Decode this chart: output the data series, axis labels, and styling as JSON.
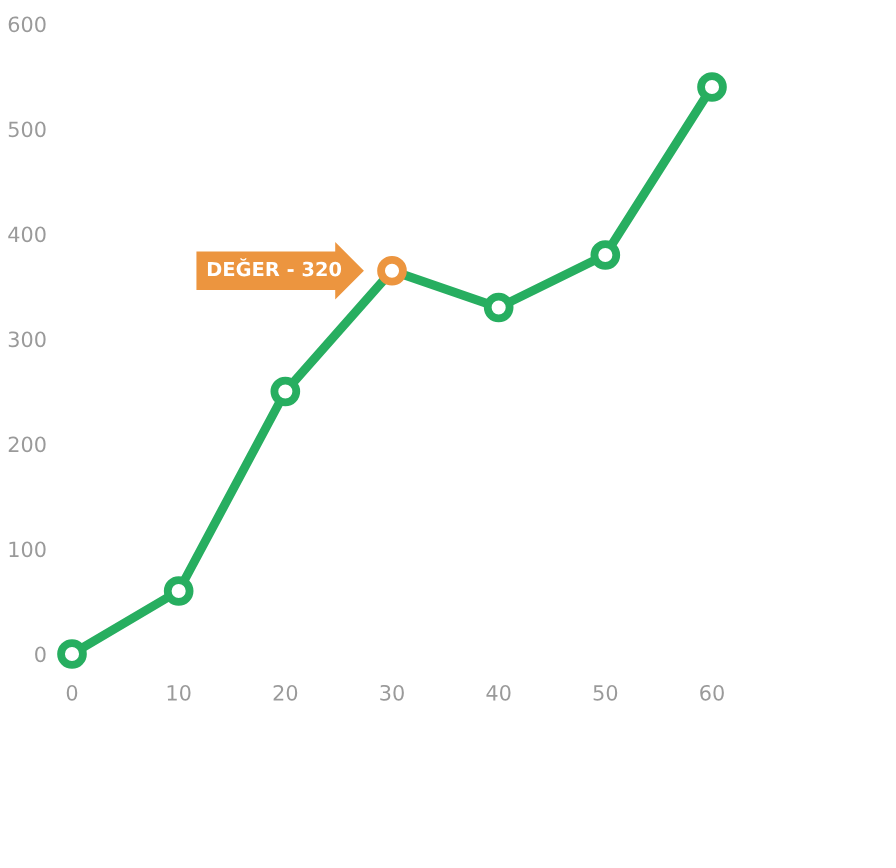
{
  "chart_data": {
    "type": "line",
    "x": [
      0,
      10,
      20,
      30,
      40,
      50,
      60
    ],
    "series": [
      {
        "color": "#27ae60",
        "colors": [
          "#27ae60",
          "#27ae60",
          "#27ae60",
          "#ec953f",
          "#27ae60",
          "#27ae60",
          "#27ae60"
        ],
        "values": [
          0,
          60,
          250,
          365,
          330,
          380,
          540
        ]
      }
    ],
    "xlim": [
      0,
      60
    ],
    "xticks": [
      0,
      10,
      20,
      30,
      40,
      50,
      60
    ],
    "ylim": [
      0,
      600
    ],
    "yticks": [
      0,
      100,
      200,
      300,
      400,
      500,
      600
    ],
    "grid": false,
    "legend": false,
    "marker": "circle",
    "line_style": "solid",
    "annotations": [
      {
        "text": "DEĞER - 320",
        "x": 30,
        "y": 365
      }
    ]
  }
}
